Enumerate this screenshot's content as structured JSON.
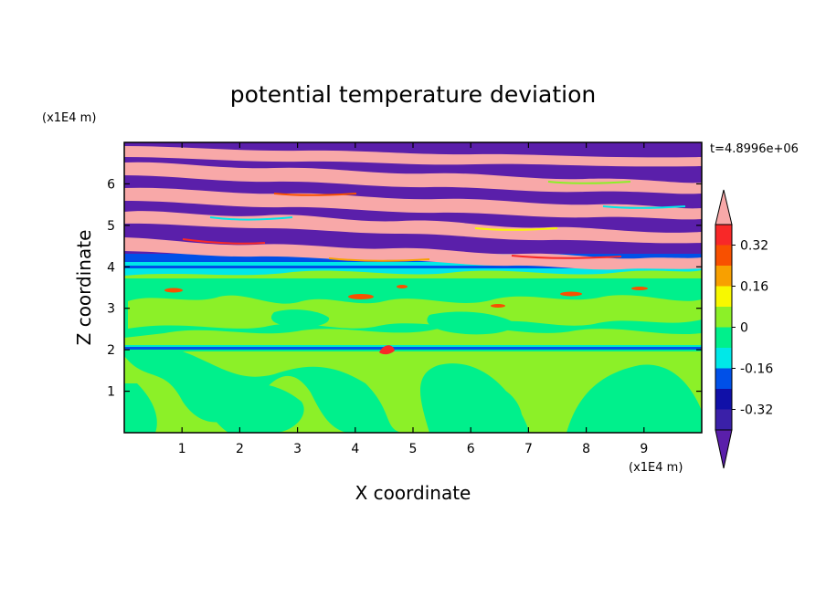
{
  "chart_data": {
    "type": "heatmap",
    "title": "potential temperature deviation",
    "xlabel": "X coordinate",
    "ylabel": "Z coordinate",
    "x_unit": "(x1E4 m)",
    "y_unit": "(x1E4 m)",
    "time_label": "t=4.8996e+06",
    "xlim": [
      0,
      10
    ],
    "ylim": [
      0,
      7
    ],
    "x_ticks": [
      1,
      2,
      3,
      4,
      5,
      6,
      7,
      8,
      9
    ],
    "y_ticks": [
      1,
      2,
      3,
      4,
      5,
      6
    ],
    "colorbar": {
      "levels": [
        -0.4,
        -0.32,
        -0.24,
        -0.16,
        -0.08,
        0,
        0.08,
        0.16,
        0.24,
        0.32,
        0.4
      ],
      "colors": [
        "#5a1faa",
        "#3a20a8",
        "#1010a8",
        "#0050e8",
        "#00e8e8",
        "#00f08c",
        "#8cf028",
        "#f8f800",
        "#f8a000",
        "#f85000",
        "#f82828",
        "#f8a8a8"
      ],
      "tick_labels": [
        "0.32",
        "0.16",
        "0",
        "-0.16",
        "-0.32"
      ],
      "tick_values": [
        0.32,
        0.16,
        0,
        -0.16,
        -0.32
      ]
    },
    "layers": [
      {
        "z_range": [
          4.3,
          7.0
        ],
        "pattern": "alternating bands",
        "values": [
          -0.4,
          0.4
        ]
      },
      {
        "z_range": [
          4.0,
          4.3
        ],
        "value": -0.16
      },
      {
        "z_range": [
          3.7,
          4.0
        ],
        "value": -0.08
      },
      {
        "z_range": [
          2.0,
          3.7
        ],
        "value": 0.0
      },
      {
        "z_range": [
          1.95,
          2.05
        ],
        "value": -0.16
      },
      {
        "z_range": [
          0.0,
          2.0
        ],
        "pattern": "mixed",
        "values": [
          0.0,
          0.08
        ]
      }
    ]
  }
}
